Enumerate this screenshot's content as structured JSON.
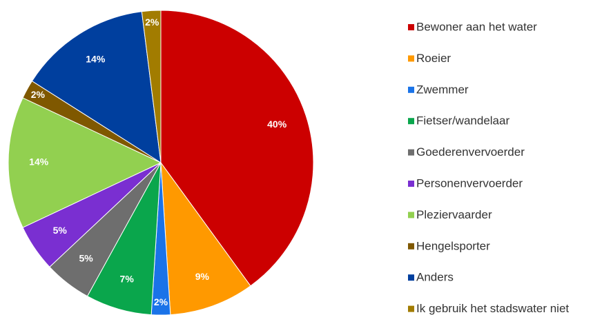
{
  "chart_data": {
    "type": "pie",
    "categories": [
      "Bewoner aan het water",
      "Roeier",
      "Zwemmer",
      "Fietser/wandelaar",
      "Goederenvervoerder",
      "Personenvervoerder",
      "Pleziervaarder",
      "Hengelsporter",
      "Anders",
      "Ik gebruik het stadswater niet"
    ],
    "values": [
      40,
      9,
      2,
      7,
      5,
      5,
      14,
      2,
      14,
      2
    ],
    "value_labels": [
      "40%",
      "9%",
      "2%",
      "7%",
      "5%",
      "5%",
      "14%",
      "2%",
      "14%",
      "2%"
    ],
    "colors": [
      "#cc0000",
      "#ff9900",
      "#1a73e8",
      "#0aa64c",
      "#6e6e6e",
      "#7a2fd1",
      "#92d050",
      "#7f5800",
      "#003f9e",
      "#a27c00"
    ],
    "legend": "right"
  }
}
